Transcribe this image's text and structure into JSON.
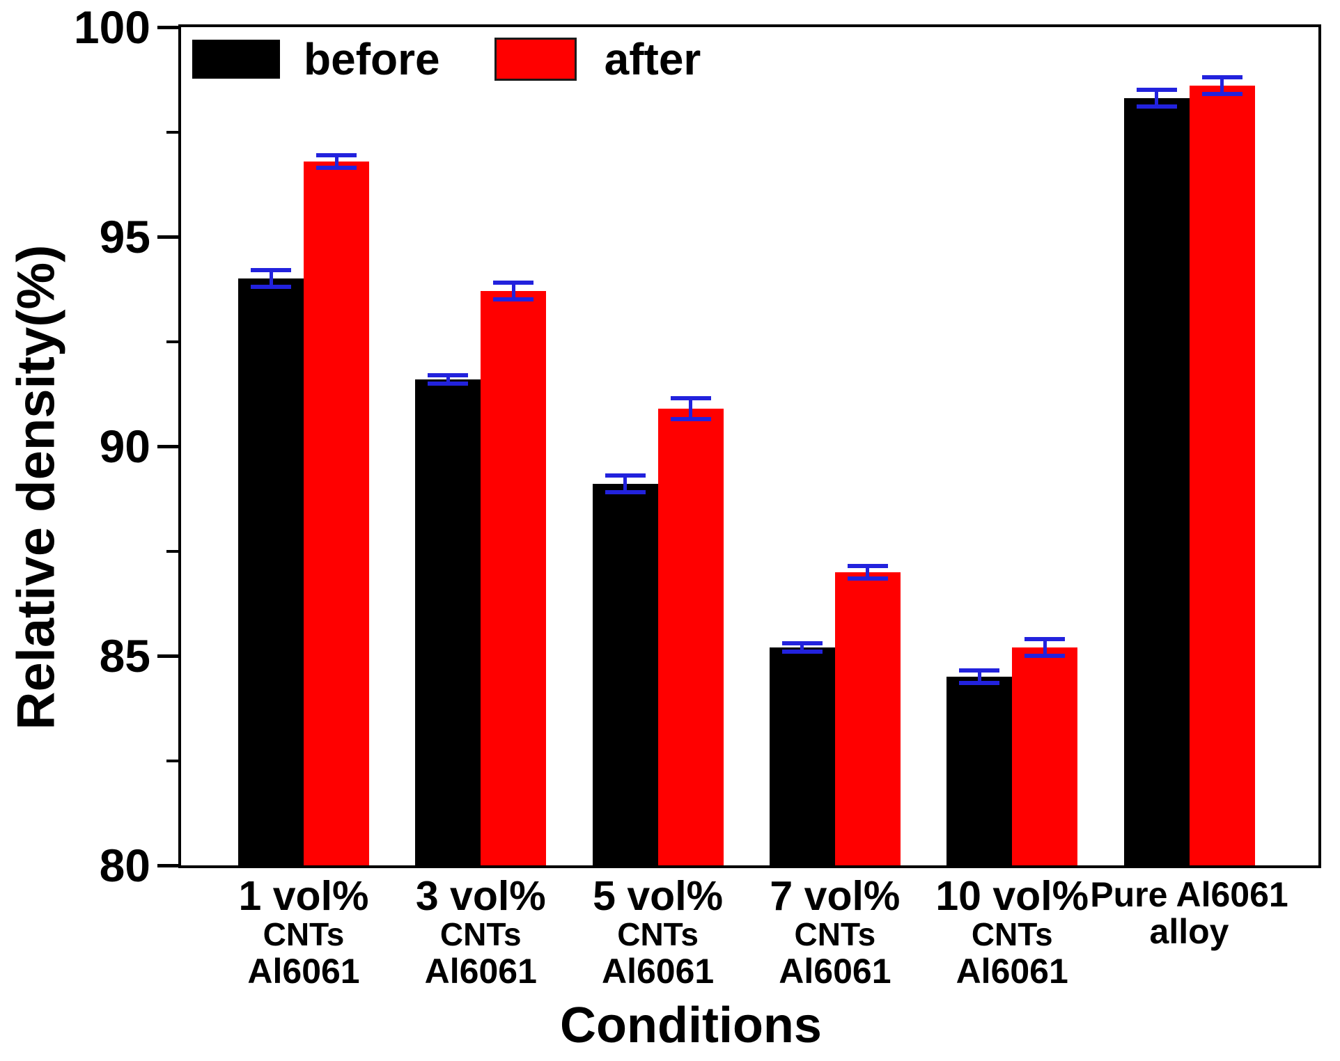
{
  "chart_data": {
    "type": "bar",
    "title": "",
    "ylabel": "Relative density(%)",
    "xlabel": "Conditions",
    "ylim": [
      80,
      100
    ],
    "y_major_ticks": [
      80,
      85,
      90,
      95,
      100
    ],
    "y_minor_ticks": [
      82.5,
      87.5,
      92.5,
      97.5
    ],
    "grid": false,
    "legend_position": "top-left-inside",
    "categories": [
      {
        "lines": [
          "1 vol%",
          "CNTs",
          "Al6061"
        ],
        "large_first_line": true
      },
      {
        "lines": [
          "3 vol%",
          "CNTs",
          "Al6061"
        ],
        "large_first_line": true
      },
      {
        "lines": [
          "5 vol%",
          "CNTs",
          "Al6061"
        ],
        "large_first_line": true
      },
      {
        "lines": [
          "7 vol%",
          "CNTs",
          "Al6061"
        ],
        "large_first_line": true
      },
      {
        "lines": [
          "10 vol%",
          "CNTs",
          "Al6061"
        ],
        "large_first_line": true
      },
      {
        "lines": [
          "Pure Al6061",
          "alloy"
        ],
        "large_first_line": false
      }
    ],
    "series": [
      {
        "name": "before",
        "color": "#000000",
        "values": [
          94.0,
          91.6,
          89.1,
          85.2,
          84.5,
          98.3
        ],
        "errors": [
          0.2,
          0.1,
          0.2,
          0.1,
          0.15,
          0.2
        ]
      },
      {
        "name": "after",
        "color": "#ff0000",
        "values": [
          96.8,
          93.7,
          90.9,
          87.0,
          85.2,
          98.6
        ],
        "errors": [
          0.15,
          0.2,
          0.25,
          0.15,
          0.2,
          0.2
        ]
      }
    ],
    "error_bar_color": "#2222dd",
    "axis_color": "#000000"
  }
}
